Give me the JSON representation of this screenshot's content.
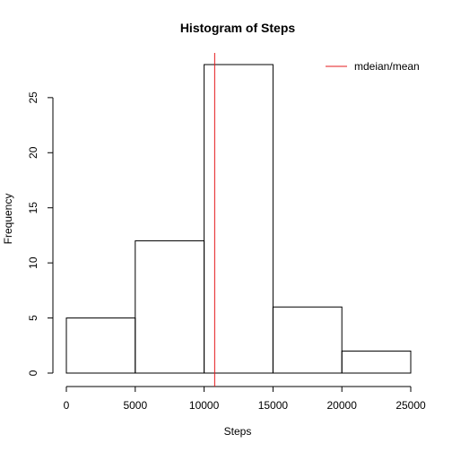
{
  "chart_data": {
    "type": "bar",
    "title": "Histogram of Steps",
    "xlabel": "Steps",
    "ylabel": "Frequency",
    "bins": [
      {
        "start": 0,
        "end": 5000,
        "count": 5
      },
      {
        "start": 5000,
        "end": 10000,
        "count": 12
      },
      {
        "start": 10000,
        "end": 15000,
        "count": 28
      },
      {
        "start": 15000,
        "end": 20000,
        "count": 6
      },
      {
        "start": 20000,
        "end": 25000,
        "count": 2
      }
    ],
    "xlim": [
      0,
      25000
    ],
    "ylim": [
      0,
      28
    ],
    "xticks": [
      "0",
      "5000",
      "10000",
      "15000",
      "20000",
      "25000"
    ],
    "yticks": [
      "0",
      "5",
      "10",
      "15",
      "20",
      "25"
    ],
    "reference_line": {
      "x": 10766,
      "color": "#e41a1c",
      "label": "mdeian/mean"
    },
    "legend_position": "top-right",
    "grid": false
  }
}
